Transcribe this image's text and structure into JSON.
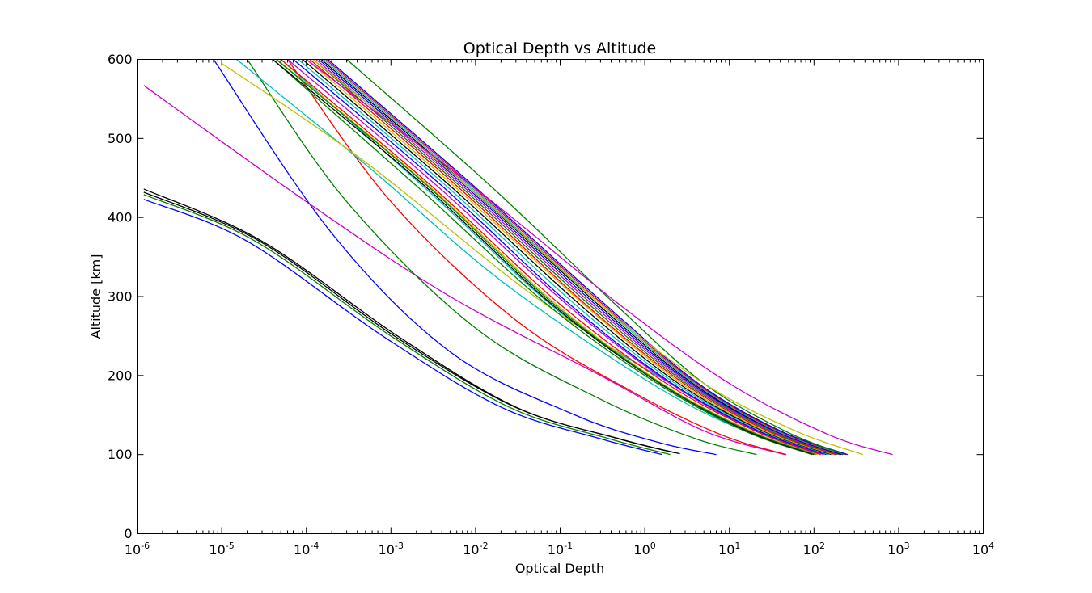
{
  "chart_data": {
    "type": "line",
    "title": "Optical Depth vs Altitude",
    "xlabel": "Optical Depth",
    "ylabel": "Altitude [km]",
    "x_scale": "log",
    "xlim": [
      1e-06,
      10000
    ],
    "ylim": [
      0,
      600
    ],
    "grid": false,
    "legend": "none",
    "x_ticks": [
      {
        "value": 1e-06,
        "base": "10",
        "exp": "-6"
      },
      {
        "value": 1e-05,
        "base": "10",
        "exp": "-5"
      },
      {
        "value": 0.0001,
        "base": "10",
        "exp": "-4"
      },
      {
        "value": 0.001,
        "base": "10",
        "exp": "-3"
      },
      {
        "value": 0.01,
        "base": "10",
        "exp": "-2"
      },
      {
        "value": 0.1,
        "base": "10",
        "exp": "-1"
      },
      {
        "value": 1,
        "base": "10",
        "exp": "0"
      },
      {
        "value": 10,
        "base": "10",
        "exp": "1"
      },
      {
        "value": 100,
        "base": "10",
        "exp": "2"
      },
      {
        "value": 1000,
        "base": "10",
        "exp": "3"
      },
      {
        "value": 10000,
        "base": "10",
        "exp": "4"
      }
    ],
    "y_ticks": [
      {
        "value": 0,
        "label": "0"
      },
      {
        "value": 100,
        "label": "100"
      },
      {
        "value": 200,
        "label": "200"
      },
      {
        "value": 300,
        "label": "300"
      },
      {
        "value": 400,
        "label": "400"
      },
      {
        "value": 500,
        "label": "500"
      },
      {
        "value": 600,
        "label": "600"
      }
    ],
    "series": [
      {
        "color": "#0000ff",
        "points": [
          [
            1.6,
            100
          ],
          [
            0.3,
            120
          ],
          [
            0.02,
            160
          ],
          [
            0.0008,
            250
          ],
          [
            2e-05,
            370
          ],
          [
            1.2e-06,
            423
          ]
        ]
      },
      {
        "color": "#008000",
        "points": [
          [
            2.0,
            100
          ],
          [
            0.38,
            120
          ],
          [
            0.025,
            160
          ],
          [
            0.001,
            250
          ],
          [
            2.5e-05,
            370
          ],
          [
            1.2e-06,
            429
          ]
        ]
      },
      {
        "color": "#000000",
        "points": [
          [
            2.6,
            101
          ],
          [
            0.5,
            120
          ],
          [
            0.03,
            160
          ],
          [
            0.0012,
            250
          ],
          [
            3e-05,
            370
          ],
          [
            1.2e-06,
            436
          ]
        ]
      },
      {
        "color": "#000000",
        "points": [
          [
            2.3,
            102
          ],
          [
            0.45,
            121
          ],
          [
            0.028,
            161
          ],
          [
            0.0011,
            250
          ],
          [
            2.8e-05,
            370
          ],
          [
            1.2e-06,
            432
          ]
        ]
      },
      {
        "color": "#0000ff",
        "points": [
          [
            7.0,
            100
          ],
          [
            1.5,
            115
          ],
          [
            0.15,
            150
          ],
          [
            0.005,
            230
          ],
          [
            0.0002,
            380
          ],
          [
            8e-06,
            600
          ]
        ]
      },
      {
        "color": "#cc00cc",
        "points": [
          [
            45,
            100
          ],
          [
            5,
            130
          ],
          [
            0.3,
            200
          ],
          [
            0.005,
            300
          ],
          [
            0.0001,
            420
          ],
          [
            1.2e-06,
            567
          ]
        ]
      },
      {
        "color": "#008000",
        "points": [
          [
            21,
            100
          ],
          [
            4,
            120
          ],
          [
            0.3,
            170
          ],
          [
            0.01,
            260
          ],
          [
            0.0003,
            420
          ],
          [
            2e-05,
            600
          ]
        ]
      },
      {
        "color": "#ff0000",
        "points": [
          [
            47,
            100
          ],
          [
            8,
            125
          ],
          [
            0.7,
            180
          ],
          [
            0.03,
            270
          ],
          [
            0.001,
            420
          ],
          [
            6e-05,
            600
          ]
        ]
      },
      {
        "color": "#00bfbf",
        "points": [
          [
            110,
            100
          ],
          [
            15,
            130
          ],
          [
            1.2,
            190
          ],
          [
            0.02,
            320
          ],
          [
            0.0006,
            460
          ],
          [
            1.5e-05,
            600
          ]
        ]
      },
      {
        "color": "#bfbf00",
        "points": [
          [
            120,
            100
          ],
          [
            20,
            130
          ],
          [
            2,
            190
          ],
          [
            0.05,
            300
          ],
          [
            0.0005,
            470
          ],
          [
            1e-05,
            595
          ]
        ]
      },
      {
        "color": "#00bfbf",
        "points": [
          [
            140,
            100
          ],
          [
            22,
            130
          ],
          [
            2,
            190
          ],
          [
            0.1,
            280
          ],
          [
            0.003,
            430
          ],
          [
            5e-05,
            600
          ]
        ]
      },
      {
        "color": "#008000",
        "points": [
          [
            95,
            100
          ],
          [
            15,
            130
          ],
          [
            1.4,
            190
          ],
          [
            0.07,
            290
          ],
          [
            0.002,
            440
          ],
          [
            4e-05,
            600
          ]
        ]
      },
      {
        "color": "#000000",
        "points": [
          [
            100,
            100
          ],
          [
            16,
            130
          ],
          [
            1.5,
            190
          ],
          [
            0.08,
            290
          ],
          [
            0.0025,
            440
          ],
          [
            4e-05,
            600
          ]
        ]
      },
      {
        "color": "#bfbf00",
        "points": [
          [
            110,
            100
          ],
          [
            18,
            130
          ],
          [
            1.6,
            190
          ],
          [
            0.09,
            290
          ],
          [
            0.0028,
            440
          ],
          [
            4.5e-05,
            600
          ]
        ]
      },
      {
        "color": "#008000",
        "points": [
          [
            105,
            100
          ],
          [
            17,
            130
          ],
          [
            1.55,
            190
          ],
          [
            0.085,
            290
          ],
          [
            0.0027,
            440
          ],
          [
            4.4e-05,
            600
          ]
        ]
      },
      {
        "color": "#ff0000",
        "points": [
          [
            120,
            100
          ],
          [
            20,
            130
          ],
          [
            1.8,
            190
          ],
          [
            0.1,
            290
          ],
          [
            0.003,
            440
          ],
          [
            5e-05,
            600
          ]
        ]
      },
      {
        "color": "#cc00cc",
        "points": [
          [
            130,
            100
          ],
          [
            21,
            130
          ],
          [
            2,
            190
          ],
          [
            0.12,
            290
          ],
          [
            0.0035,
            440
          ],
          [
            6e-05,
            600
          ]
        ]
      },
      {
        "color": "#0000ff",
        "points": [
          [
            140,
            100
          ],
          [
            22,
            130
          ],
          [
            2.1,
            190
          ],
          [
            0.13,
            290
          ],
          [
            0.004,
            440
          ],
          [
            7e-05,
            600
          ]
        ]
      },
      {
        "color": "#00bfbf",
        "points": [
          [
            150,
            100
          ],
          [
            24,
            130
          ],
          [
            2.3,
            190
          ],
          [
            0.15,
            290
          ],
          [
            0.0045,
            440
          ],
          [
            8e-05,
            600
          ]
        ]
      },
      {
        "color": "#000000",
        "points": [
          [
            160,
            100
          ],
          [
            25,
            130
          ],
          [
            2.5,
            190
          ],
          [
            0.17,
            290
          ],
          [
            0.005,
            440
          ],
          [
            9e-05,
            600
          ]
        ]
      },
      {
        "color": "#bfbf00",
        "points": [
          [
            170,
            100
          ],
          [
            26,
            130
          ],
          [
            2.7,
            190
          ],
          [
            0.19,
            290
          ],
          [
            0.0055,
            440
          ],
          [
            0.0001,
            600
          ]
        ]
      },
      {
        "color": "#ff0000",
        "points": [
          [
            180,
            100
          ],
          [
            28,
            130
          ],
          [
            2.9,
            190
          ],
          [
            0.2,
            290
          ],
          [
            0.006,
            440
          ],
          [
            0.00011,
            600
          ]
        ]
      },
      {
        "color": "#008000",
        "points": [
          [
            190,
            100
          ],
          [
            30,
            130
          ],
          [
            3.1,
            190
          ],
          [
            0.22,
            290
          ],
          [
            0.0065,
            440
          ],
          [
            0.00012,
            600
          ]
        ]
      },
      {
        "color": "#cc00cc",
        "points": [
          [
            200,
            100
          ],
          [
            32,
            130
          ],
          [
            3.3,
            190
          ],
          [
            0.24,
            290
          ],
          [
            0.007,
            440
          ],
          [
            0.00013,
            600
          ]
        ]
      },
      {
        "color": "#0000ff",
        "points": [
          [
            210,
            100
          ],
          [
            34,
            130
          ],
          [
            3.5,
            190
          ],
          [
            0.26,
            290
          ],
          [
            0.0075,
            440
          ],
          [
            0.00014,
            600
          ]
        ]
      },
      {
        "color": "#000000",
        "points": [
          [
            220,
            100
          ],
          [
            35,
            130
          ],
          [
            3.7,
            190
          ],
          [
            0.28,
            290
          ],
          [
            0.008,
            440
          ],
          [
            0.00015,
            600
          ]
        ]
      },
      {
        "color": "#00bfbf",
        "points": [
          [
            230,
            100
          ],
          [
            36,
            130
          ],
          [
            3.9,
            190
          ],
          [
            0.3,
            290
          ],
          [
            0.0085,
            440
          ],
          [
            0.00016,
            600
          ]
        ]
      },
      {
        "color": "#ff0000",
        "points": [
          [
            240,
            100
          ],
          [
            38,
            130
          ],
          [
            4.1,
            190
          ],
          [
            0.32,
            290
          ],
          [
            0.009,
            440
          ],
          [
            0.00017,
            600
          ]
        ]
      },
      {
        "color": "#0000ff",
        "points": [
          [
            250,
            100
          ],
          [
            40,
            130
          ],
          [
            4.3,
            190
          ],
          [
            0.34,
            290
          ],
          [
            0.0095,
            440
          ],
          [
            0.00018,
            600
          ]
        ]
      },
      {
        "color": "#008000",
        "points": [
          [
            230,
            100
          ],
          [
            45,
            130
          ],
          [
            5,
            190
          ],
          [
            0.45,
            290
          ],
          [
            0.015,
            440
          ],
          [
            0.0003,
            600
          ]
        ]
      },
      {
        "color": "#bfbf00",
        "points": [
          [
            380,
            100
          ],
          [
            60,
            130
          ],
          [
            5,
            190
          ],
          [
            0.3,
            290
          ],
          [
            0.008,
            440
          ],
          [
            0.00012,
            600
          ]
        ]
      },
      {
        "color": "#cc00cc",
        "points": [
          [
            850,
            100
          ],
          [
            150,
            125
          ],
          [
            10,
            190
          ],
          [
            0.5,
            290
          ],
          [
            0.012,
            430
          ],
          [
            0.0001,
            600
          ]
        ]
      }
    ]
  }
}
